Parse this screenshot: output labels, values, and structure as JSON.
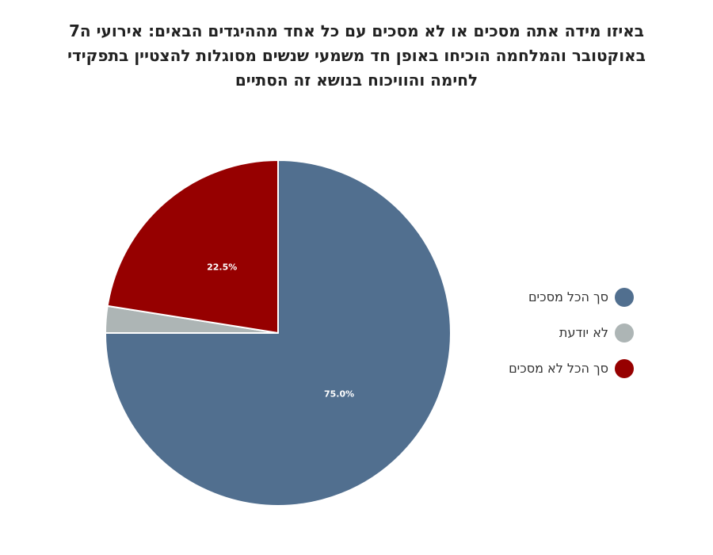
{
  "chart_data": {
    "type": "pie",
    "title_lines": [
      "באיזו מידה אתה מסכים או לא מסכים עם כל אחד מההיגדים הבאים: אירועי ה7",
      "באוקטובר והמלחמה הוכיחו באופן חד משמעי שנשים מסוגלות להצטיין בתפקידי",
      "לחימה והוויכוח בנושא זה הסתיים"
    ],
    "slices": [
      {
        "name": "סך הכל מסכים",
        "value": 75.0,
        "label": "75.0%",
        "color": "#516f8f"
      },
      {
        "name": "לא יודעת",
        "value": 2.5,
        "label": "",
        "color": "#adb5b5"
      },
      {
        "name": "סך הכל לא מסכים",
        "value": 22.5,
        "label": "22.5%",
        "color": "#960000"
      }
    ],
    "legend_position": "right",
    "start": "top",
    "direction": "clockwise"
  }
}
